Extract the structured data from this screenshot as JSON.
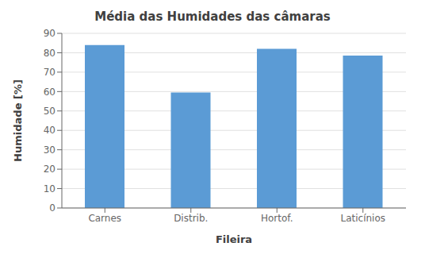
{
  "chart_data": {
    "type": "bar",
    "title": "Média das Humidades das câmaras",
    "categories": [
      "Carnes",
      "Distrib.",
      "Hortof.",
      "Laticínios"
    ],
    "values": [
      84,
      59.5,
      82,
      78.5
    ],
    "color": "#5B9BD5",
    "xlabel": "Fileira",
    "ylabel": "Humidade [%]",
    "ylim": [
      0,
      90
    ],
    "yticks": [
      0,
      10,
      20,
      30,
      40,
      50,
      60,
      70,
      80,
      90
    ],
    "grid": true
  }
}
